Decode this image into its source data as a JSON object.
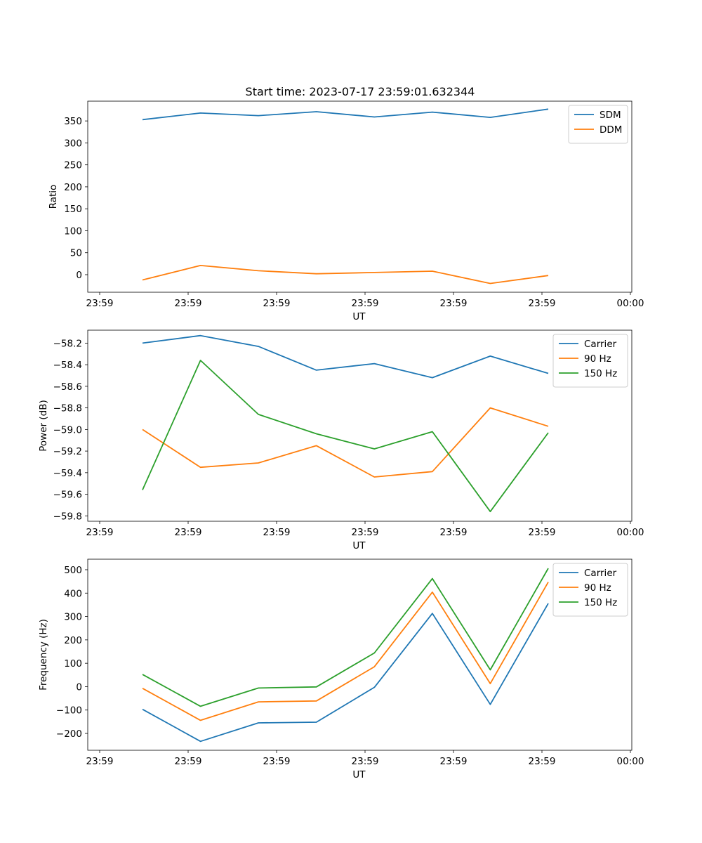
{
  "chart_data": [
    {
      "type": "line",
      "title": "Start time: 2023-07-17 23:59:01.632344",
      "xlabel": "UT",
      "ylabel": "Ratio",
      "x_tick_labels": [
        "23:59",
        "23:59",
        "23:59",
        "23:59",
        "23:59",
        "23:59",
        "00:00"
      ],
      "x_points": [
        1,
        2,
        3,
        4,
        5,
        6,
        7,
        8
      ],
      "ylim": [
        -40,
        395
      ],
      "y_ticks": [
        0,
        50,
        100,
        150,
        200,
        250,
        300,
        350
      ],
      "legend_position": "upper-right",
      "series": [
        {
          "name": "SDM",
          "color": "#1f77b4",
          "values": [
            353,
            368,
            362,
            371,
            359,
            370,
            358,
            377
          ]
        },
        {
          "name": "DDM",
          "color": "#ff7f0e",
          "values": [
            -12,
            21,
            9,
            2,
            5,
            8,
            -20,
            -2
          ]
        }
      ]
    },
    {
      "type": "line",
      "title": "",
      "xlabel": "UT",
      "ylabel": "Power (dB)",
      "x_tick_labels": [
        "23:59",
        "23:59",
        "23:59",
        "23:59",
        "23:59",
        "23:59",
        "00:00"
      ],
      "x_points": [
        1,
        2,
        3,
        4,
        5,
        6,
        7,
        8
      ],
      "ylim": [
        -59.85,
        -58.08
      ],
      "y_ticks": [
        -59.8,
        -59.6,
        -59.4,
        -59.2,
        -59.0,
        -58.8,
        -58.6,
        -58.4,
        -58.2
      ],
      "y_tick_labels": [
        "−59.8",
        "−59.6",
        "−59.4",
        "−59.2",
        "−59.0",
        "−58.8",
        "−58.6",
        "−58.4",
        "−58.2"
      ],
      "legend_position": "upper-right",
      "series": [
        {
          "name": "Carrier",
          "color": "#1f77b4",
          "values": [
            -58.2,
            -58.13,
            -58.23,
            -58.45,
            -58.39,
            -58.52,
            -58.32,
            -58.48
          ]
        },
        {
          "name": "90 Hz",
          "color": "#ff7f0e",
          "values": [
            -59.0,
            -59.35,
            -59.31,
            -59.15,
            -59.44,
            -59.39,
            -58.8,
            -58.97
          ]
        },
        {
          "name": "150 Hz",
          "color": "#2ca02c",
          "values": [
            -59.56,
            -58.36,
            -58.86,
            -59.04,
            -59.18,
            -59.02,
            -59.76,
            -59.03
          ]
        }
      ]
    },
    {
      "type": "line",
      "title": "",
      "xlabel": "UT",
      "ylabel": "Frequency (Hz)",
      "x_tick_labels": [
        "23:59",
        "23:59",
        "23:59",
        "23:59",
        "23:59",
        "23:59",
        "00:00"
      ],
      "x_points": [
        1,
        2,
        3,
        4,
        5,
        6,
        7,
        8
      ],
      "ylim": [
        -272,
        545
      ],
      "y_ticks": [
        -200,
        -100,
        0,
        100,
        200,
        300,
        400,
        500
      ],
      "y_tick_labels": [
        "−200",
        "−100",
        "0",
        "100",
        "200",
        "300",
        "400",
        "500"
      ],
      "legend_position": "upper-right",
      "series": [
        {
          "name": "Carrier",
          "color": "#1f77b4",
          "values": [
            -97,
            -234,
            -155,
            -152,
            -3,
            313,
            -76,
            356
          ]
        },
        {
          "name": "90 Hz",
          "color": "#ff7f0e",
          "values": [
            -7,
            -144,
            -65,
            -61,
            85,
            404,
            13,
            447
          ]
        },
        {
          "name": "150 Hz",
          "color": "#2ca02c",
          "values": [
            52,
            -84,
            -6,
            -1,
            144,
            462,
            72,
            506
          ]
        }
      ]
    }
  ]
}
